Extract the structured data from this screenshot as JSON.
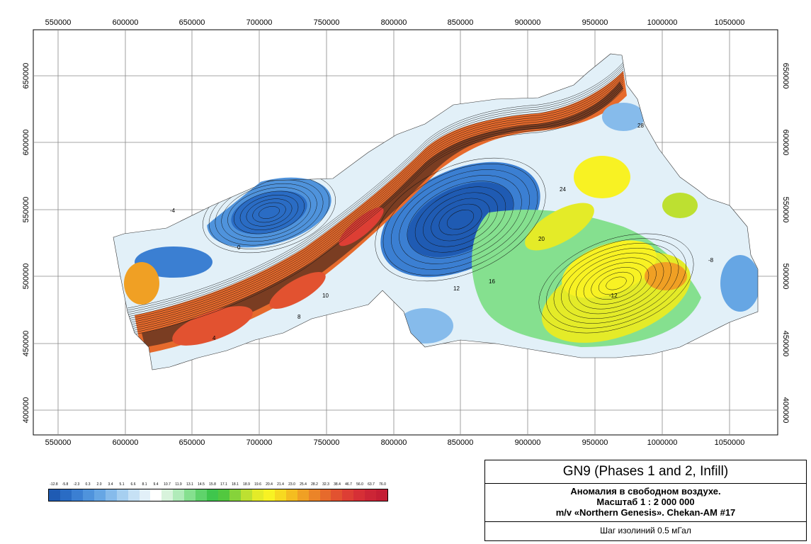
{
  "map": {
    "x_ticks": [
      "550000",
      "600000",
      "650000",
      "700000",
      "750000",
      "800000",
      "850000",
      "900000",
      "950000",
      "1000000",
      "1050000"
    ],
    "y_ticks": [
      "650000",
      "600000",
      "550000",
      "500000",
      "450000",
      "400000"
    ],
    "contour_labels": [
      "-4",
      "0",
      "4",
      "8",
      "10",
      "12",
      "16",
      "20",
      "24",
      "28",
      "-8",
      "-12"
    ]
  },
  "title": {
    "main": "GN9 (Phases 1 and 2, Infill)",
    "line1": "Аномалия в свободном воздухе.",
    "line2": "Масштаб 1 : 2 000 000",
    "line3": "m/v «Northern Genesis». Chekan-AM #17",
    "footer": "Шаг изолиний 0.5 мГал"
  },
  "legend": {
    "values": [
      "-12.8",
      "-5.8",
      "-2.3",
      "0.3",
      "2.0",
      "3.4",
      "5.1",
      "6.6",
      "8.1",
      "9.4",
      "10.7",
      "11.9",
      "13.1",
      "14.5",
      "15.8",
      "17.1",
      "18.1",
      "18.9",
      "19.6",
      "20.4",
      "21.4",
      "23.0",
      "25.4",
      "28.2",
      "32.3",
      "38.4",
      "46.7",
      "56.0",
      "63.7",
      "76.0"
    ],
    "colors": [
      "#1f5bb3",
      "#2a6cc4",
      "#3b7fd2",
      "#4f93dc",
      "#66a6e4",
      "#86bbeb",
      "#a6cff0",
      "#c6e1f5",
      "#e2f0f8",
      "#ffffff",
      "#d8f3dc",
      "#b0ebb9",
      "#85e08f",
      "#5fd36b",
      "#3fc64d",
      "#52c83f",
      "#86d33a",
      "#bde031",
      "#e4eb28",
      "#f8f223",
      "#f7d920",
      "#f4bd20",
      "#f0a024",
      "#eb8428",
      "#e66a2c",
      "#e25230",
      "#dd3e34",
      "#d62f36",
      "#cc2536",
      "#c41e34"
    ]
  }
}
